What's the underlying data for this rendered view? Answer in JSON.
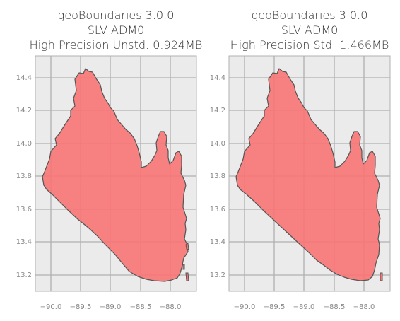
{
  "panels": [
    {
      "title_lines": [
        "geoBoundaries 3.0.0",
        "SLV ADM0",
        "High Precision Unstd. 0.924MB"
      ]
    },
    {
      "title_lines": [
        "geoBoundaries 3.0.0",
        "SLV ADM0",
        "High Precision Std. 1.466MB"
      ]
    }
  ],
  "axes": {
    "x_ticks": [
      "−90.0",
      "−89.5",
      "−89.0",
      "−88.5",
      "−88.0"
    ],
    "y_ticks": [
      "14.4",
      "14.2",
      "14.0",
      "13.8",
      "13.6",
      "13.4",
      "13.2"
    ]
  },
  "colors": {
    "fill": "#f87474",
    "edge": "#555555",
    "background": "#ebebeb",
    "grid": "#b0b0b0"
  }
}
